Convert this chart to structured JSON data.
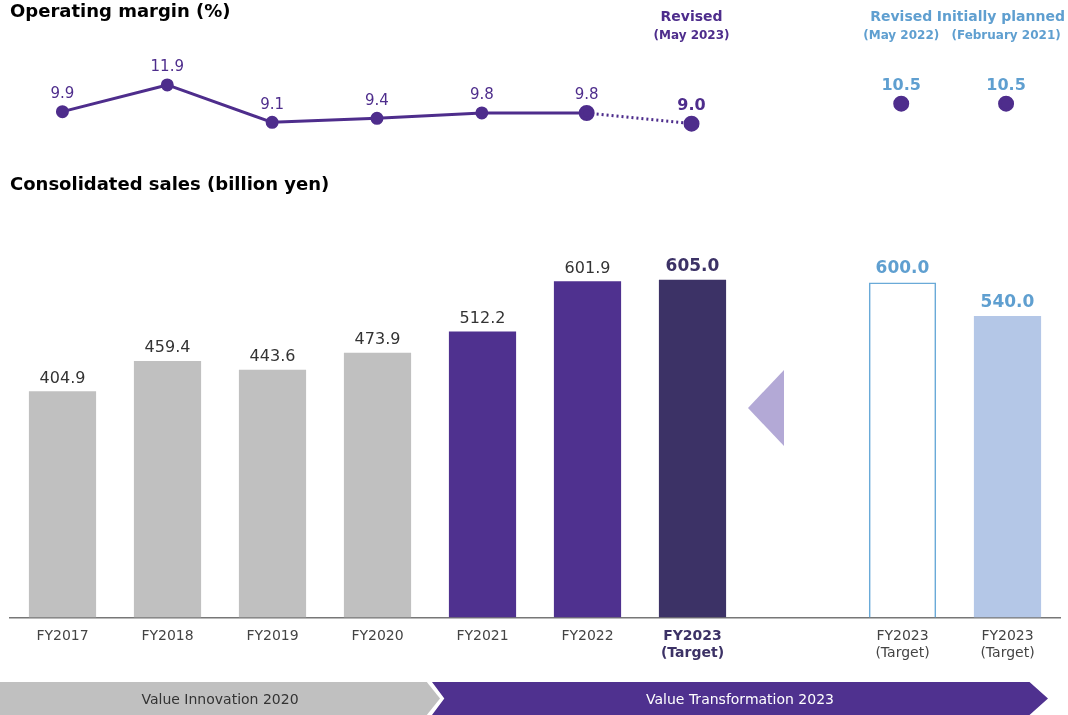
{
  "chart_data": [
    {
      "type": "line",
      "title": "Operating margin (%)",
      "categories": [
        null,
        null,
        null,
        null,
        null,
        null,
        null,
        null,
        null,
        null
      ],
      "series": [
        {
          "color": "#4e2d8c",
          "values": [
            9.9,
            11.9,
            9.1,
            9.4,
            9.8,
            9.8,
            null,
            null,
            null,
            null
          ]
        },
        {
          "color": "#4e2d8c",
          "line_style": "dotted",
          "values": [
            null,
            null,
            null,
            null,
            null,
            9.8,
            9.0,
            null,
            null,
            null
          ],
          "value_labels": [
            null,
            null,
            null,
            null,
            null,
            null,
            "9.0",
            null,
            null,
            null
          ]
        },
        {
          "color": "#4e2d8c",
          "values": [
            null,
            null,
            null,
            null,
            null,
            null,
            null,
            null,
            10.5,
            null
          ]
        },
        {
          "color": "#4e2d8c",
          "values": [
            null,
            null,
            null,
            null,
            null,
            null,
            null,
            null,
            null,
            10.5
          ]
        }
      ],
      "annotations": [
        "Revised (May 2023)",
        "Revised (May 2022)",
        "Initially planned (February 2021)"
      ],
      "marker": "circle",
      "data_labels": true,
      "tick_labels": false,
      "grid": false,
      "legend": false
    },
    {
      "type": "bar",
      "title": "Consolidated sales (billion yen)",
      "categories": [
        "FY2017",
        "FY2018",
        "FY2019",
        "FY2020",
        "FY2021",
        "FY2022",
        "FY2023 (Target)",
        null,
        "FY2023 (Target)",
        "FY2023 (Target)"
      ],
      "series": [
        {
          "colors": [
            "#c0c0c0",
            "#c0c0c0",
            "#c0c0c0",
            "#c0c0c0",
            "#4f318f",
            "#4f318f",
            "#3c3266",
            null,
            null,
            null
          ],
          "values": [
            404.9,
            459.4,
            443.6,
            473.9,
            512.2,
            601.9,
            605.0,
            null,
            null,
            null
          ],
          "value_labels": [
            "404.9",
            "459.4",
            "443.6",
            "473.9",
            "512.2",
            "601.9",
            "605.0",
            null,
            null,
            null
          ]
        },
        {
          "color": "#6aaad8",
          "line_style": "dashed",
          "values": [
            null,
            null,
            null,
            null,
            null,
            null,
            null,
            null,
            600.0,
            null
          ],
          "value_labels": [
            null,
            null,
            null,
            null,
            null,
            null,
            null,
            null,
            "600.0",
            null
          ]
        },
        {
          "color": "#b4c7e7",
          "values": [
            null,
            null,
            null,
            null,
            null,
            null,
            null,
            null,
            null,
            540.0
          ],
          "value_labels": [
            null,
            null,
            null,
            null,
            null,
            null,
            null,
            null,
            null,
            "540.0"
          ]
        }
      ],
      "tick_labels": "x",
      "grid": false,
      "legend": false,
      "annotations": [
        "Value Innovation 2020",
        "Value Transformation 2023"
      ]
    }
  ]
}
